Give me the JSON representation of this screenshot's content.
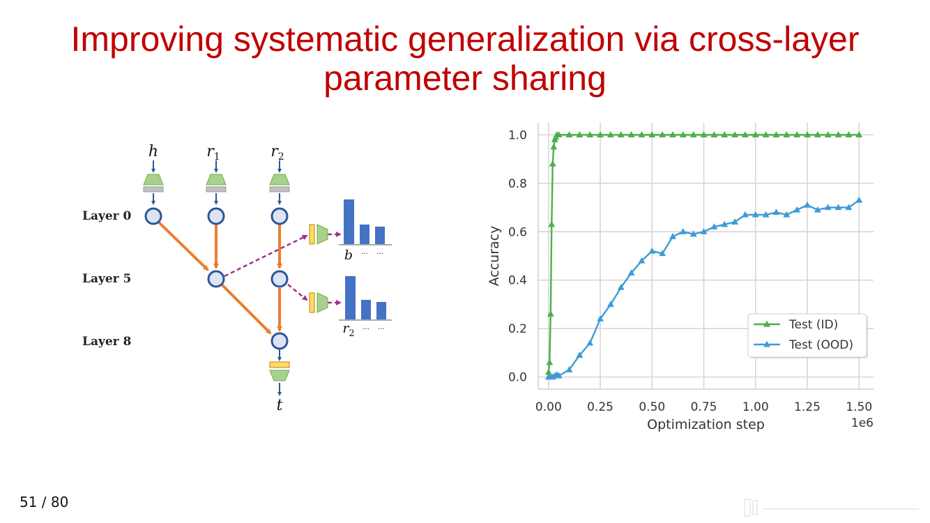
{
  "slide": {
    "title_line1": "Improving systematic generalization via cross-layer",
    "title_line2": "parameter sharing",
    "page_number": "51 / 80"
  },
  "diagram": {
    "inputs": [
      "h",
      "r",
      "r"
    ],
    "input_subscripts": [
      "",
      "1",
      "2"
    ],
    "layers": [
      "Layer 0",
      "Layer 5",
      "Layer 8"
    ],
    "output": "t",
    "probe1_label": "b",
    "probe1_dots": [
      "···",
      "···"
    ],
    "probe2_label": "r",
    "probe2_subscript": "2",
    "probe2_dots": [
      "···",
      "···"
    ],
    "colors": {
      "node_fill": "#dbe4f3",
      "node_stroke": "#2e5597",
      "edge": "#ed7d31",
      "probe_edge": "#a0308f",
      "bar": "#4472c4",
      "trapezoid": "#a9d18e",
      "rect_gray": "#c0c0c0",
      "rect_yellow": "#ffd966"
    }
  },
  "chart_data": {
    "type": "line",
    "xlabel": "Optimization step",
    "ylabel": "Accuracy",
    "x_multiplier": "1e6",
    "xlim": [
      -0.05,
      1.57
    ],
    "ylim": [
      -0.05,
      1.05
    ],
    "xticks": [
      0.0,
      0.25,
      0.5,
      0.75,
      1.0,
      1.25,
      1.5
    ],
    "xtick_labels": [
      "0.00",
      "0.25",
      "0.50",
      "0.75",
      "1.00",
      "1.25",
      "1.50"
    ],
    "yticks": [
      0.0,
      0.2,
      0.4,
      0.6,
      0.8,
      1.0
    ],
    "ytick_labels": [
      "0.0",
      "0.2",
      "0.4",
      "0.6",
      "0.8",
      "1.0"
    ],
    "grid": true,
    "legend_position": "lower-right",
    "series": [
      {
        "name": "Test (ID)",
        "color": "#4daf4a",
        "marker": "triangle",
        "x": [
          0.0,
          0.005,
          0.01,
          0.015,
          0.02,
          0.025,
          0.03,
          0.035,
          0.04,
          0.05,
          0.1,
          0.15,
          0.2,
          0.25,
          0.3,
          0.35,
          0.4,
          0.45,
          0.5,
          0.55,
          0.6,
          0.65,
          0.7,
          0.75,
          0.8,
          0.85,
          0.9,
          0.95,
          1.0,
          1.05,
          1.1,
          1.15,
          1.2,
          1.25,
          1.3,
          1.35,
          1.4,
          1.45,
          1.5
        ],
        "y": [
          0.02,
          0.06,
          0.26,
          0.63,
          0.88,
          0.95,
          0.98,
          0.99,
          1.0,
          1.0,
          1.0,
          1.0,
          1.0,
          1.0,
          1.0,
          1.0,
          1.0,
          1.0,
          1.0,
          1.0,
          1.0,
          1.0,
          1.0,
          1.0,
          1.0,
          1.0,
          1.0,
          1.0,
          1.0,
          1.0,
          1.0,
          1.0,
          1.0,
          1.0,
          1.0,
          1.0,
          1.0,
          1.0,
          1.0
        ]
      },
      {
        "name": "Test (OOD)",
        "color": "#3e9bd6",
        "marker": "triangle",
        "x": [
          0.0,
          0.01,
          0.02,
          0.03,
          0.04,
          0.05,
          0.1,
          0.15,
          0.2,
          0.25,
          0.3,
          0.35,
          0.4,
          0.45,
          0.5,
          0.55,
          0.6,
          0.65,
          0.7,
          0.75,
          0.8,
          0.85,
          0.9,
          0.95,
          1.0,
          1.05,
          1.1,
          1.15,
          1.2,
          1.25,
          1.3,
          1.35,
          1.4,
          1.45,
          1.5
        ],
        "y": [
          0.0,
          0.0,
          0.0,
          0.005,
          0.01,
          0.005,
          0.03,
          0.09,
          0.14,
          0.24,
          0.3,
          0.37,
          0.43,
          0.48,
          0.52,
          0.51,
          0.58,
          0.6,
          0.59,
          0.6,
          0.62,
          0.63,
          0.64,
          0.67,
          0.67,
          0.67,
          0.68,
          0.67,
          0.69,
          0.71,
          0.69,
          0.7,
          0.7,
          0.7,
          0.73
        ]
      }
    ]
  }
}
